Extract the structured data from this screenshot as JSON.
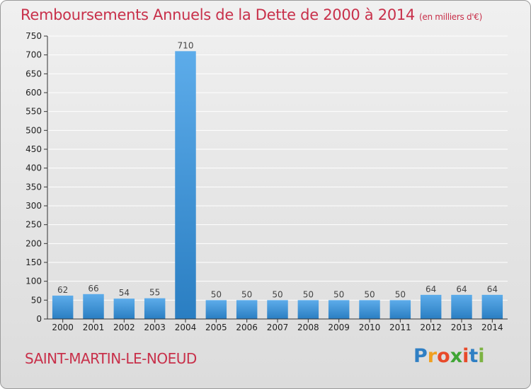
{
  "chart_data": {
    "type": "bar",
    "title": "Remboursements Annuels de la Dette de 2000 à 2014",
    "unit_note": "(en milliers d'€)",
    "categories": [
      "2000",
      "2001",
      "2002",
      "2003",
      "2004",
      "2005",
      "2006",
      "2007",
      "2008",
      "2009",
      "2010",
      "2011",
      "2012",
      "2013",
      "2014"
    ],
    "values": [
      62,
      66,
      54,
      55,
      710,
      50,
      50,
      50,
      50,
      50,
      50,
      50,
      64,
      64,
      64
    ],
    "ylim": [
      0,
      750
    ],
    "yticks": [
      0,
      50,
      100,
      150,
      200,
      250,
      300,
      350,
      400,
      450,
      500,
      550,
      600,
      650,
      700,
      750
    ],
    "xlabel": "",
    "ylabel": "",
    "grid": true,
    "colors": {
      "bar_top": "#5dacea",
      "bar_bottom": "#2a7ec2",
      "title": "#c8304a",
      "grid": "#ffffff"
    }
  },
  "footer": {
    "commune": "SAINT-MARTIN-LE-NOEUD",
    "logo_letters": [
      "P",
      "r",
      "o",
      "x",
      "i",
      "t",
      "i"
    ],
    "logo_colors": [
      "#2f7fc4",
      "#f0a020",
      "#e84a2a",
      "#3fa535",
      "#e84a2a",
      "#2f7fc4",
      "#7cb342"
    ]
  }
}
